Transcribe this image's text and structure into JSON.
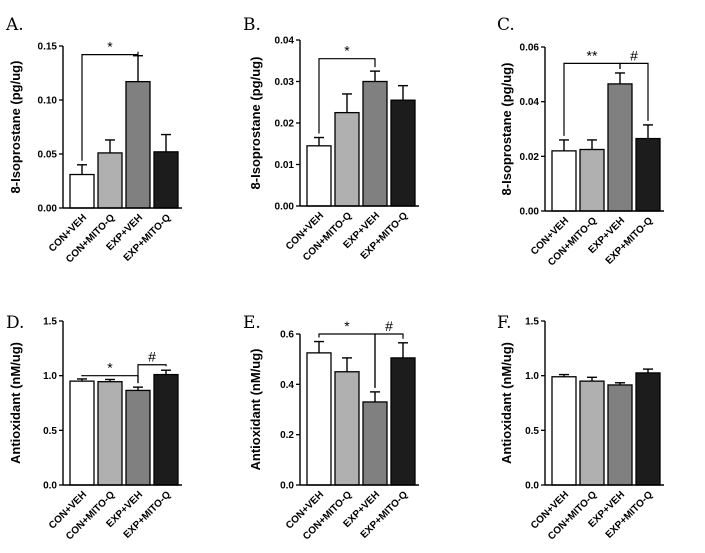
{
  "colors": {
    "con_veh": "#ffffff",
    "con_mitoq": "#b0b0b0",
    "exp_veh": "#808080",
    "exp_mitoq": "#1c1c1c",
    "axis": "#000000"
  },
  "chart_data": [
    {
      "panel": "A.",
      "type": "bar",
      "ylabel": "8-Isoprostane (pg/ug)",
      "categories": [
        "CON+VEH",
        "CON+MITO-Q",
        "EXP+VEH",
        "EXP+MITO-Q"
      ],
      "values": [
        0.031,
        0.051,
        0.117,
        0.052
      ],
      "errors": [
        0.009,
        0.012,
        0.024,
        0.016
      ],
      "ylim": [
        0,
        0.15
      ],
      "ticks": [
        "0.00",
        "0.05",
        "0.10",
        "0.15"
      ],
      "tick_values": [
        0,
        0.05,
        0.1,
        0.15
      ],
      "annotations": [
        {
          "label": "*",
          "from": 0,
          "to": 2,
          "y": 0.142
        }
      ]
    },
    {
      "panel": "B.",
      "type": "bar",
      "ylabel": "8-Isoprostane (pg/ug)",
      "categories": [
        "CON+VEH",
        "CON+MITO-Q",
        "EXP+VEH",
        "EXP+MITO-Q"
      ],
      "values": [
        0.0145,
        0.0225,
        0.03,
        0.0255
      ],
      "errors": [
        0.002,
        0.0045,
        0.0025,
        0.0035
      ],
      "ylim": [
        0,
        0.04
      ],
      "ticks": [
        "0.00",
        "0.01",
        "0.02",
        "0.03",
        "0.04"
      ],
      "tick_values": [
        0,
        0.01,
        0.02,
        0.03,
        0.04
      ],
      "annotations": [
        {
          "label": "*",
          "from": 0,
          "to": 2,
          "y": 0.0355
        }
      ]
    },
    {
      "panel": "C.",
      "type": "bar",
      "ylabel": "8-Isoprostane (pg/ug)",
      "categories": [
        "CON+VEH",
        "CON+MITO-Q",
        "EXP+VEH",
        "EXP+MITO-Q"
      ],
      "values": [
        0.022,
        0.0225,
        0.0465,
        0.0265
      ],
      "errors": [
        0.004,
        0.0035,
        0.004,
        0.005
      ],
      "ylim": [
        0,
        0.06
      ],
      "ticks": [
        "0.00",
        "0.02",
        "0.04",
        "0.06"
      ],
      "tick_values": [
        0,
        0.02,
        0.04,
        0.06
      ],
      "annotations": [
        {
          "label": "**",
          "from": 0,
          "to": 2,
          "y": 0.054
        },
        {
          "label": "#",
          "from": 2,
          "to": 3,
          "y": 0.054
        }
      ]
    },
    {
      "panel": "D.",
      "type": "bar",
      "ylabel": "Antioxidant (nM/ug)",
      "categories": [
        "CON+VEH",
        "CON+MITO-Q",
        "EXP+VEH",
        "EXP+MITO-Q"
      ],
      "values": [
        0.95,
        0.945,
        0.865,
        1.01
      ],
      "errors": [
        0.02,
        0.02,
        0.03,
        0.04
      ],
      "ylim": [
        0,
        1.5
      ],
      "ticks": [
        "0.0",
        "0.5",
        "1.0",
        "1.5"
      ],
      "tick_values": [
        0,
        0.5,
        1.0,
        1.5
      ],
      "annotations": [
        {
          "label": "*",
          "from": 0,
          "to": 2,
          "y": 1.0
        },
        {
          "label": "#",
          "from": 2,
          "to": 3,
          "y": 1.1
        }
      ]
    },
    {
      "panel": "E.",
      "type": "bar",
      "ylabel": "Antioxidant (nM/ug)",
      "categories": [
        "CON+VEH",
        "CON+MITO-Q",
        "EXP+VEH",
        "EXP+MITO-Q"
      ],
      "values": [
        0.525,
        0.45,
        0.33,
        0.505
      ],
      "errors": [
        0.045,
        0.055,
        0.04,
        0.06
      ],
      "ylim": [
        0,
        0.6
      ],
      "ticks": [
        "0.0",
        "0.2",
        "0.4",
        "0.6"
      ],
      "tick_values": [
        0,
        0.2,
        0.4,
        0.6
      ],
      "annotations": [
        {
          "label": "*",
          "from": 0,
          "to": 2,
          "y": 0.6
        },
        {
          "label": "#",
          "from": 2,
          "to": 3,
          "y": 0.6
        }
      ]
    },
    {
      "panel": "F.",
      "type": "bar",
      "ylabel": "Antioxidant (nM/ug)",
      "categories": [
        "CON+VEH",
        "CON+MITO-Q",
        "EXP+VEH",
        "EXP+MITO-Q"
      ],
      "values": [
        0.99,
        0.95,
        0.915,
        1.025
      ],
      "errors": [
        0.02,
        0.035,
        0.02,
        0.035
      ],
      "ylim": [
        0,
        1.5
      ],
      "ticks": [
        "0.0",
        "0.5",
        "1.0",
        "1.5"
      ],
      "tick_values": [
        0,
        0.5,
        1.0,
        1.5
      ],
      "annotations": []
    }
  ]
}
